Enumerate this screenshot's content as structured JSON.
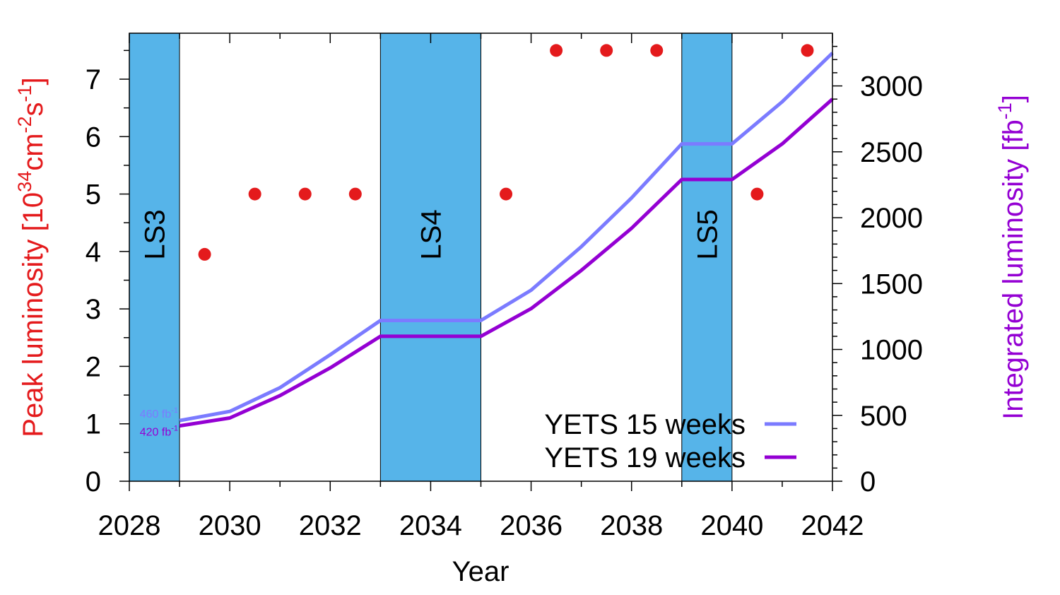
{
  "chart_data": {
    "type": "line",
    "xlabel": "Year",
    "ylabel_left": {
      "main": "Peak luminosity [10",
      "exp1": "34",
      "mid1": "cm",
      "exp2": "-2",
      "mid2": "s",
      "exp3": "-1",
      "end": "]"
    },
    "ylabel_right": {
      "main": "Integrated luminosity [fb",
      "exp": "-1",
      "end": "]"
    },
    "xlim": [
      2028,
      2042
    ],
    "ylim_left": [
      0,
      7.8
    ],
    "ylim_right": [
      0,
      3400
    ],
    "x_ticks": [
      "2028",
      "2030",
      "2032",
      "2034",
      "2036",
      "2038",
      "2040",
      "2042"
    ],
    "y_left_ticks": [
      "0",
      "1",
      "2",
      "3",
      "4",
      "5",
      "6",
      "7"
    ],
    "y_right_ticks": [
      "0",
      "500",
      "1000",
      "1500",
      "2000",
      "2500",
      "3000"
    ],
    "shutdowns": [
      {
        "label": "LS3",
        "start": 2028,
        "end": 2029
      },
      {
        "label": "LS4",
        "start": 2033,
        "end": 2035
      },
      {
        "label": "LS5",
        "start": 2039,
        "end": 2040
      }
    ],
    "peak_luminosity": {
      "x": [
        2029.5,
        2030.5,
        2031.5,
        2032.5,
        2035.5,
        2036.5,
        2037.5,
        2038.5,
        2040.5,
        2041.5
      ],
      "y": [
        3.95,
        5.0,
        5.0,
        5.0,
        5.0,
        7.5,
        7.5,
        7.5,
        5.0,
        7.5
      ]
    },
    "series": [
      {
        "name": "YETS 15 weeks",
        "x": [
          2029,
          2030,
          2031,
          2032,
          2033,
          2035,
          2036,
          2037,
          2038,
          2039,
          2040,
          2041,
          2042
        ],
        "y": [
          460,
          530,
          710,
          960,
          1220,
          1220,
          1450,
          1780,
          2150,
          2560,
          2560,
          2880,
          3250
        ]
      },
      {
        "name": "YETS 19 weeks",
        "x": [
          2029,
          2030,
          2031,
          2032,
          2033,
          2035,
          2036,
          2037,
          2038,
          2039,
          2040,
          2041,
          2042
        ],
        "y": [
          420,
          480,
          650,
          860,
          1100,
          1100,
          1310,
          1600,
          1920,
          2290,
          2290,
          2560,
          2900
        ]
      }
    ],
    "start_labels": [
      {
        "value": "460 fb",
        "exp": "-1"
      },
      {
        "value": "420 fb",
        "exp": "-1"
      }
    ],
    "colors": {
      "shutdown_fill": "#56b4e9",
      "peak_points": "#e41a1c",
      "yets15": "#7b7bff",
      "yets19": "#9400d3",
      "left_axis_title": "#e41a1c",
      "right_axis_title": "#9400d3"
    },
    "legend": "bottom-right",
    "grid": false
  }
}
